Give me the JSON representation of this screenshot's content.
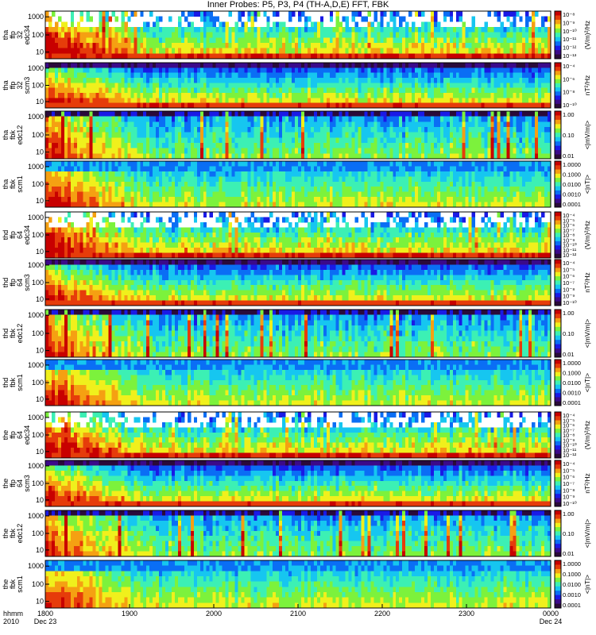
{
  "chart_data": {
    "type": "heatmap",
    "title": "Inner Probes: P5, P3, P4 (TH-A,D,E) FFT, FBK",
    "x_ticks": [
      "1800",
      "1900",
      "2000",
      "2100",
      "2200",
      "2300",
      "0000"
    ],
    "x_sublabels": {
      "first": "Dec 23",
      "last": "Dec 24"
    },
    "x_axis_label": [
      "hhmm",
      "2010"
    ],
    "grid": false,
    "colormap": [
      "#2a0a3a",
      "#3b0a8a",
      "#1a1ae6",
      "#0a6ef5",
      "#16c6f0",
      "#3cf0b4",
      "#7cf23c",
      "#f0f01c",
      "#f5a012",
      "#e63c0a",
      "#c80000"
    ],
    "panels": [
      {
        "id": "tha-ffp-edc34",
        "ylabel": [
          "tha",
          "ffp",
          "32",
          "edc34"
        ],
        "yticks": [
          "1000",
          "100",
          "10"
        ],
        "cbar_ticks": [
          "10⁻⁸",
          "10⁻⁹",
          "10⁻¹⁰",
          "10⁻¹¹",
          "10⁻¹²",
          "10⁻¹³"
        ],
        "cbar_label": "(V/m)²/Hz",
        "kind": "edc"
      },
      {
        "id": "tha-ffp-scm3",
        "ylabel": [
          "tha",
          "ffp",
          "32",
          "scm3"
        ],
        "yticks": [
          "1000",
          "100",
          "10"
        ],
        "cbar_ticks": [
          "10⁻⁴",
          "10⁻⁶",
          "10⁻⁸",
          "10⁻¹⁰"
        ],
        "cbar_label": "nT²/Hz",
        "kind": "scm"
      },
      {
        "id": "tha-fbk-edc12",
        "ylabel": [
          "tha",
          "fbk",
          "edc12"
        ],
        "yticks": [
          "1000",
          "100",
          "10"
        ],
        "cbar_ticks": [
          "1.00",
          "0.10",
          "0.01"
        ],
        "cbar_label": "<|mV/m|>",
        "kind": "fbke"
      },
      {
        "id": "tha-fbk-scm1",
        "ylabel": [
          "tha",
          "fbk",
          "scm1"
        ],
        "yticks": [
          "1000",
          "100",
          "10"
        ],
        "cbar_ticks": [
          "1.0000",
          "0.1000",
          "0.0100",
          "0.0010",
          "0.0001"
        ],
        "cbar_label": "<|nT|>",
        "kind": "fbkb"
      },
      {
        "id": "thd-ffp-edc34",
        "ylabel": [
          "thd",
          "ffp",
          "64",
          "edc34"
        ],
        "yticks": [
          "1000",
          "100",
          "10"
        ],
        "cbar_ticks": [
          "10⁻⁴",
          "10⁻⁵",
          "10⁻⁶",
          "10⁻⁷",
          "10⁻⁸",
          "10⁻⁹",
          "10⁻¹⁰",
          "10⁻¹¹",
          "10⁻¹²"
        ],
        "cbar_label": "(V/m)²/Hz",
        "kind": "edc"
      },
      {
        "id": "thd-ffp-scm3",
        "ylabel": [
          "thd",
          "ffp",
          "64",
          "scm3"
        ],
        "yticks": [
          "1000",
          "100",
          "10"
        ],
        "cbar_ticks": [
          "10⁻⁴",
          "10⁻⁵",
          "10⁻⁶",
          "10⁻⁷",
          "10⁻⁸",
          "10⁻⁹",
          "10⁻¹⁰"
        ],
        "cbar_label": "nT²/Hz",
        "kind": "scm"
      },
      {
        "id": "thd-fbk-edc12",
        "ylabel": [
          "thd",
          "fbk",
          "edc12"
        ],
        "yticks": [
          "1000",
          "100",
          "10"
        ],
        "cbar_ticks": [
          "1.00",
          "0.10",
          "0.01"
        ],
        "cbar_label": "<|mV/m|>",
        "kind": "fbke"
      },
      {
        "id": "thd-fbk-scm1",
        "ylabel": [
          "thd",
          "fbk",
          "scm1"
        ],
        "yticks": [
          "1000",
          "100",
          "10"
        ],
        "cbar_ticks": [
          "1.0000",
          "0.1000",
          "0.0100",
          "0.0010",
          "0.0001"
        ],
        "cbar_label": "<|nT|>",
        "kind": "fbkb"
      },
      {
        "id": "the-ffp-edc34",
        "ylabel": [
          "the",
          "ffp",
          "64",
          "edc34"
        ],
        "yticks": [
          "1000",
          "100",
          "10"
        ],
        "cbar_ticks": [
          "10⁻⁴",
          "10⁻⁵",
          "10⁻⁶",
          "10⁻⁷",
          "10⁻⁸",
          "10⁻⁹",
          "10⁻¹⁰",
          "10⁻¹¹",
          "10⁻¹²"
        ],
        "cbar_label": "(V/m)²/Hz",
        "kind": "edc"
      },
      {
        "id": "the-ffp-scm3",
        "ylabel": [
          "the",
          "ffp",
          "64",
          "scm3"
        ],
        "yticks": [
          "1000",
          "100",
          "10"
        ],
        "cbar_ticks": [
          "10⁻⁴",
          "10⁻⁵",
          "10⁻⁶",
          "10⁻⁷",
          "10⁻⁸",
          "10⁻⁹",
          "10⁻¹⁰"
        ],
        "cbar_label": "nT²/Hz",
        "kind": "scm"
      },
      {
        "id": "the-fbk-edc12",
        "ylabel": [
          "the",
          "fbk",
          "edc12"
        ],
        "yticks": [
          "1000",
          "100",
          "10"
        ],
        "cbar_ticks": [
          "1.00",
          "0.10",
          "0.01"
        ],
        "cbar_label": "<|mV/m|>",
        "kind": "fbke"
      },
      {
        "id": "the-fbk-scm1",
        "ylabel": [
          "the",
          "fbk",
          "scm1"
        ],
        "yticks": [
          "1000",
          "100",
          "10"
        ],
        "cbar_ticks": [
          "1.0000",
          "0.1000",
          "0.0100",
          "0.0010",
          "0.0001"
        ],
        "cbar_label": "<|nT|>",
        "kind": "fbkb"
      }
    ]
  }
}
